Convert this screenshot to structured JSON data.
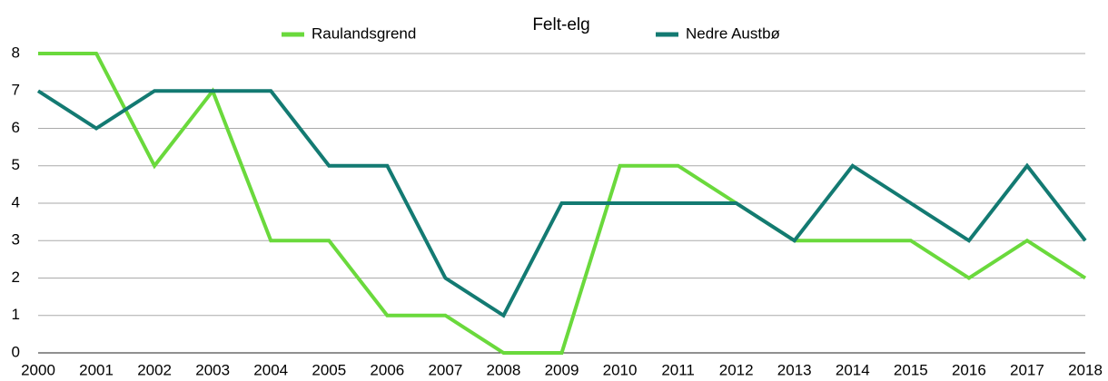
{
  "chart_data": {
    "type": "line",
    "title": "Felt-elg",
    "categories": [
      "2000",
      "2001",
      "2002",
      "2003",
      "2004",
      "2005",
      "2006",
      "2007",
      "2008",
      "2009",
      "2010",
      "2011",
      "2012",
      "2013",
      "2014",
      "2015",
      "2016",
      "2017",
      "2018"
    ],
    "series": [
      {
        "name": "Raulandsgrend",
        "color": "#6ad93c",
        "values": [
          8,
          8,
          5,
          7,
          3,
          3,
          1,
          1,
          0,
          0,
          5,
          5,
          4,
          3,
          3,
          3,
          2,
          3,
          2
        ]
      },
      {
        "name": "Nedre Austbø",
        "color": "#137a72",
        "values": [
          7,
          6,
          7,
          7,
          7,
          5,
          5,
          2,
          1,
          4,
          4,
          4,
          4,
          3,
          5,
          4,
          3,
          5,
          3
        ]
      }
    ],
    "ylim": [
      0,
      8
    ],
    "yticks": [
      0,
      1,
      2,
      3,
      4,
      5,
      6,
      7,
      8
    ],
    "grid": true,
    "legend": "top"
  }
}
